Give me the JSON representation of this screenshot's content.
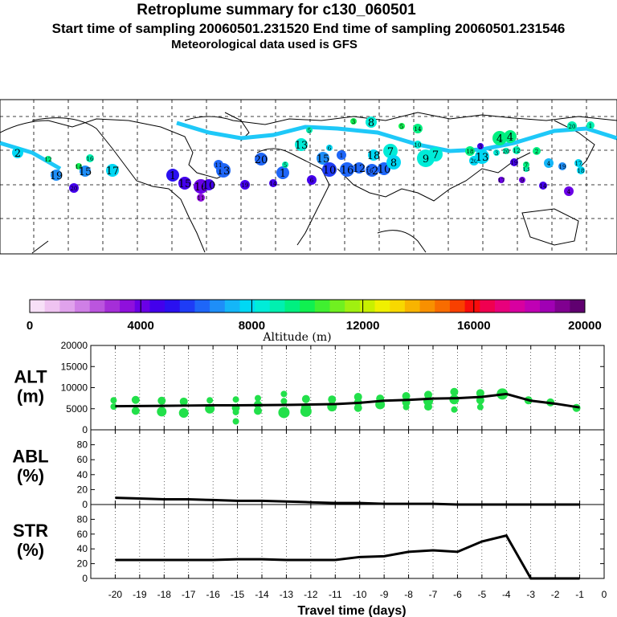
{
  "header": {
    "title": "Retroplume summary for c130_060501",
    "subtitle": "Start time of sampling 20060501.231520     End time of sampling 20060501.231546",
    "note": "Meteorological data used is GFS"
  },
  "colorbar": {
    "ticks": [
      "0",
      "4000",
      "8000",
      "12000",
      "16000",
      "20000"
    ],
    "label": "Altitude (m)",
    "colors": [
      "#f7e0f7",
      "#efc3f1",
      "#e0a2ec",
      "#cf7fe6",
      "#bb55de",
      "#a52ed8",
      "#8f10dc",
      "#6a00e6",
      "#4300ec",
      "#2a10f0",
      "#1e3cf6",
      "#1e66f8",
      "#1e8ef8",
      "#14b6f8",
      "#00d8f4",
      "#00ecd8",
      "#00f0b0",
      "#00f080",
      "#10f050",
      "#40f030",
      "#70f020",
      "#a0f010",
      "#c8f000",
      "#f0f000",
      "#f8d800",
      "#f8b400",
      "#f89000",
      "#f86c00",
      "#f84000",
      "#f80c0c",
      "#f00050",
      "#e8007c",
      "#d800a0",
      "#c000b4",
      "#a000b4",
      "#800090",
      "#600070"
    ]
  },
  "chart_data": [
    {
      "type": "scatter",
      "name": "ALT",
      "ylabel": [
        "ALT",
        "(m)"
      ],
      "ylim": [
        0,
        20000
      ],
      "yticks": [
        0,
        5000,
        10000,
        15000,
        20000
      ],
      "line": {
        "x": [
          -20,
          -19,
          -18,
          -17,
          -16,
          -15,
          -14,
          -13,
          -12,
          -11,
          -10,
          -9,
          -8,
          -7,
          -6,
          -5,
          -4,
          -3,
          -2,
          -1
        ],
        "y": [
          5600,
          5650,
          5700,
          5750,
          5800,
          5800,
          5850,
          5900,
          6000,
          6100,
          6400,
          6900,
          7100,
          7400,
          7500,
          7800,
          8500,
          6900,
          6200,
          5300
        ]
      },
      "points": [
        {
          "x": -20,
          "y": 7000,
          "r": 4
        },
        {
          "x": -20,
          "y": 5500,
          "r": 4
        },
        {
          "x": -19,
          "y": 7100,
          "r": 5
        },
        {
          "x": -19,
          "y": 4500,
          "r": 5
        },
        {
          "x": -18,
          "y": 6900,
          "r": 5
        },
        {
          "x": -18,
          "y": 4300,
          "r": 6
        },
        {
          "x": -17,
          "y": 6700,
          "r": 5
        },
        {
          "x": -17,
          "y": 4000,
          "r": 6
        },
        {
          "x": -16,
          "y": 7000,
          "r": 4
        },
        {
          "x": -16,
          "y": 5000,
          "r": 6
        },
        {
          "x": -15,
          "y": 7200,
          "r": 4
        },
        {
          "x": -15,
          "y": 5200,
          "r": 5
        },
        {
          "x": -15,
          "y": 4200,
          "r": 4
        },
        {
          "x": -15,
          "y": 2000,
          "r": 4
        },
        {
          "x": -14,
          "y": 7500,
          "r": 4
        },
        {
          "x": -14,
          "y": 6000,
          "r": 5
        },
        {
          "x": -14,
          "y": 4500,
          "r": 5
        },
        {
          "x": -13,
          "y": 8500,
          "r": 4
        },
        {
          "x": -13,
          "y": 6800,
          "r": 4
        },
        {
          "x": -13,
          "y": 4100,
          "r": 7
        },
        {
          "x": -12,
          "y": 7300,
          "r": 5
        },
        {
          "x": -12,
          "y": 5200,
          "r": 6
        },
        {
          "x": -12,
          "y": 4400,
          "r": 7
        },
        {
          "x": -11,
          "y": 7200,
          "r": 5
        },
        {
          "x": -11,
          "y": 5500,
          "r": 6
        },
        {
          "x": -10,
          "y": 7800,
          "r": 5
        },
        {
          "x": -10,
          "y": 6500,
          "r": 5
        },
        {
          "x": -10,
          "y": 5200,
          "r": 5
        },
        {
          "x": -9,
          "y": 7400,
          "r": 5
        },
        {
          "x": -9,
          "y": 6000,
          "r": 6
        },
        {
          "x": -8,
          "y": 8000,
          "r": 5
        },
        {
          "x": -8,
          "y": 6500,
          "r": 5
        },
        {
          "x": -8,
          "y": 5400,
          "r": 4
        },
        {
          "x": -7,
          "y": 8300,
          "r": 5
        },
        {
          "x": -7,
          "y": 6800,
          "r": 6
        },
        {
          "x": -7,
          "y": 5500,
          "r": 5
        },
        {
          "x": -6,
          "y": 9000,
          "r": 5
        },
        {
          "x": -6,
          "y": 7200,
          "r": 6
        },
        {
          "x": -6,
          "y": 4800,
          "r": 4
        },
        {
          "x": -5,
          "y": 8700,
          "r": 5
        },
        {
          "x": -5,
          "y": 7000,
          "r": 5
        },
        {
          "x": -5,
          "y": 5400,
          "r": 4
        },
        {
          "x": -4,
          "y": 8500,
          "r": 7
        },
        {
          "x": -3,
          "y": 7000,
          "r": 5
        },
        {
          "x": -2,
          "y": 6500,
          "r": 5
        },
        {
          "x": -1,
          "y": 5200,
          "r": 5
        }
      ]
    },
    {
      "type": "line",
      "name": "ABL",
      "ylabel": [
        "ABL",
        "(%)"
      ],
      "ylim": [
        0,
        100
      ],
      "yticks": [
        0,
        20,
        40,
        60,
        80
      ],
      "x": [
        -20,
        -19,
        -18,
        -17,
        -16,
        -15,
        -14,
        -13,
        -12,
        -11,
        -10,
        -9,
        -8,
        -7,
        -6,
        -5,
        -4,
        -3,
        -2,
        -1
      ],
      "y": [
        9,
        8,
        7,
        7,
        6,
        5,
        5,
        4,
        3,
        2,
        2,
        1,
        1,
        1,
        0,
        0,
        0,
        0,
        0,
        0
      ]
    },
    {
      "type": "line",
      "name": "STR",
      "ylabel": [
        "STR",
        "(%)"
      ],
      "ylim": [
        0,
        100
      ],
      "yticks": [
        0,
        20,
        40,
        60,
        80
      ],
      "x": [
        -20,
        -19,
        -18,
        -17,
        -16,
        -15,
        -14,
        -13,
        -12,
        -11,
        -10,
        -9,
        -8,
        -7,
        -6,
        -5,
        -4,
        -3,
        -2,
        -1
      ],
      "y": [
        25,
        25,
        25,
        25,
        25,
        26,
        26,
        25,
        25,
        25,
        29,
        30,
        36,
        38,
        36,
        50,
        58,
        0,
        0,
        0
      ]
    }
  ],
  "xaxis": {
    "ticks": [
      "-20",
      "-19",
      "-18",
      "-17",
      "-16",
      "-15",
      "-14",
      "-13",
      "-12",
      "-11",
      "-10",
      "-9",
      "-8",
      "-7",
      "-6",
      "-5",
      "-4",
      "-3",
      "-2",
      "-1",
      "0"
    ],
    "label": "Travel time (days)"
  },
  "map": {
    "labels": [
      "2",
      "12",
      "19",
      "14",
      "16",
      "15",
      "17",
      "20",
      "1",
      "15",
      "16",
      "10",
      "13",
      "11",
      "11",
      "19",
      "20",
      "14",
      "1",
      "5",
      "13",
      "6",
      "15",
      "10",
      "1",
      "16",
      "12",
      "18",
      "8",
      "12",
      "10",
      "7",
      "8",
      "9",
      "7",
      "10",
      "14",
      "18",
      "3",
      "20",
      "13",
      "4",
      "4",
      "19",
      "12",
      "13",
      "2",
      "4",
      "19",
      "14",
      "4",
      "17",
      "18",
      "20",
      "1",
      "20",
      "3",
      "3",
      "5",
      "16",
      "6",
      "5",
      "9",
      "7",
      "17"
    ]
  }
}
